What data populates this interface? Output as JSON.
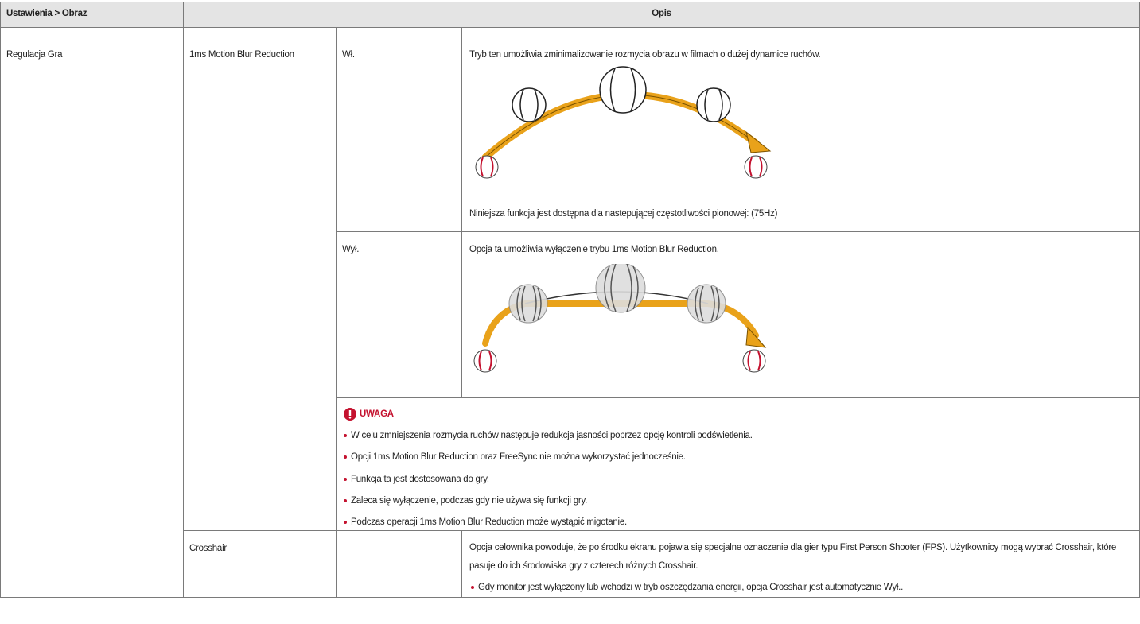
{
  "header": {
    "setting": "Ustawienia > Obraz",
    "description": "Opis"
  },
  "group": "Regulacja Gra",
  "motion_blur": {
    "label": "1ms Motion Blur Reduction",
    "on": {
      "label": "Wł.",
      "text": "Tryb ten umożliwia zminimalizowanie rozmycia obrazu w filmach o dużej dynamice ruchów.",
      "availability": "Niniejsza funkcja jest dostępna dla nastepującej częstotliwości pionowej:  (75Hz)"
    },
    "off": {
      "label": "Wył.",
      "text": "Opcja ta umożliwia wyłączenie trybu 1ms Motion Blur Reduction."
    },
    "note": {
      "title": "UWAGA",
      "items": [
        "W celu zmniejszenia rozmycia ruchów następuje redukcja jasności poprzez opcję kontroli podświetlenia.",
        "Opcji 1ms Motion Blur Reduction oraz FreeSync nie można wykorzystać jednocześnie.",
        "Funkcja ta jest dostosowana do gry.",
        "Zaleca się wyłączenie, podczas gdy nie używa się funkcji gry.",
        "Podczas operacji 1ms Motion Blur Reduction może wystąpić migotanie."
      ]
    }
  },
  "crosshair": {
    "label": "Crosshair",
    "text": "Opcja celownika powoduje, że po środku ekranu pojawia się specjalne oznaczenie dla gier typu First Person Shooter (FPS). Użytkownicy mogą wybrać Crosshair, które pasuje do ich środowiska gry z czterech różnych Crosshair.",
    "items": [
      "Gdy monitor jest wyłączony lub wchodzi w tryb oszczędzania energii, opcja Crosshair jest automatycznie Wył.."
    ]
  }
}
